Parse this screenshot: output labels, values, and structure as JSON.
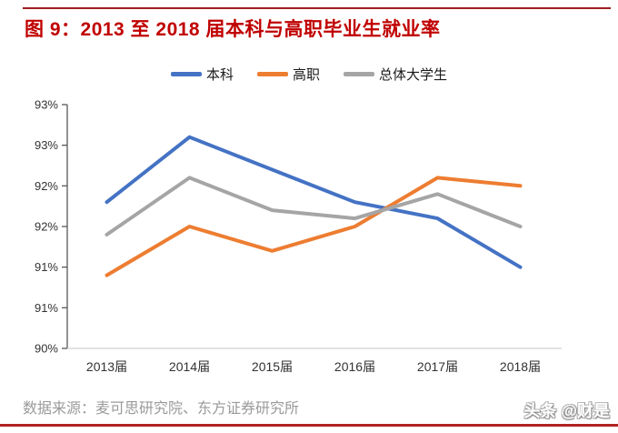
{
  "header": {
    "title": "图 9：2013 至 2018 届本科与高职毕业生就业率"
  },
  "chart_data": {
    "type": "line",
    "title": "图 9：2013 至 2018 届本科与高职毕业生就业率",
    "categories": [
      "2013届",
      "2014届",
      "2015届",
      "2016届",
      "2017届",
      "2018届"
    ],
    "series": [
      {
        "name": "本科",
        "color": "#4472C4",
        "values": [
          91.8,
          92.6,
          92.2,
          91.8,
          91.6,
          91.0
        ]
      },
      {
        "name": "高职",
        "color": "#ED7D31",
        "values": [
          90.9,
          91.5,
          91.2,
          91.5,
          92.1,
          92.0
        ]
      },
      {
        "name": "总体大学生",
        "color": "#A5A5A5",
        "values": [
          91.4,
          92.1,
          91.7,
          91.6,
          91.9,
          91.5
        ]
      }
    ],
    "xlabel": "",
    "ylabel": "",
    "ylim": [
      90,
      93
    ],
    "ytick_step": 0.5,
    "ytick_labels_top_to_bottom": [
      "93%",
      "93%",
      "92%",
      "92%",
      "91%",
      "91%",
      "90%"
    ],
    "grid": false,
    "legend_position": "top"
  },
  "footer": {
    "source": "数据来源：麦可思研究院、东方证券研究所",
    "watermark": "头条 @财是"
  },
  "colors": {
    "title_red": "#C00000",
    "rule_red_top": "#9E1B1E",
    "rule_red_bottom": "#B22222",
    "axis_line": "#595959",
    "x_axis_line": "#D9D9D9",
    "axis_text": "#333333",
    "source_gray": "#9a9a9a"
  }
}
